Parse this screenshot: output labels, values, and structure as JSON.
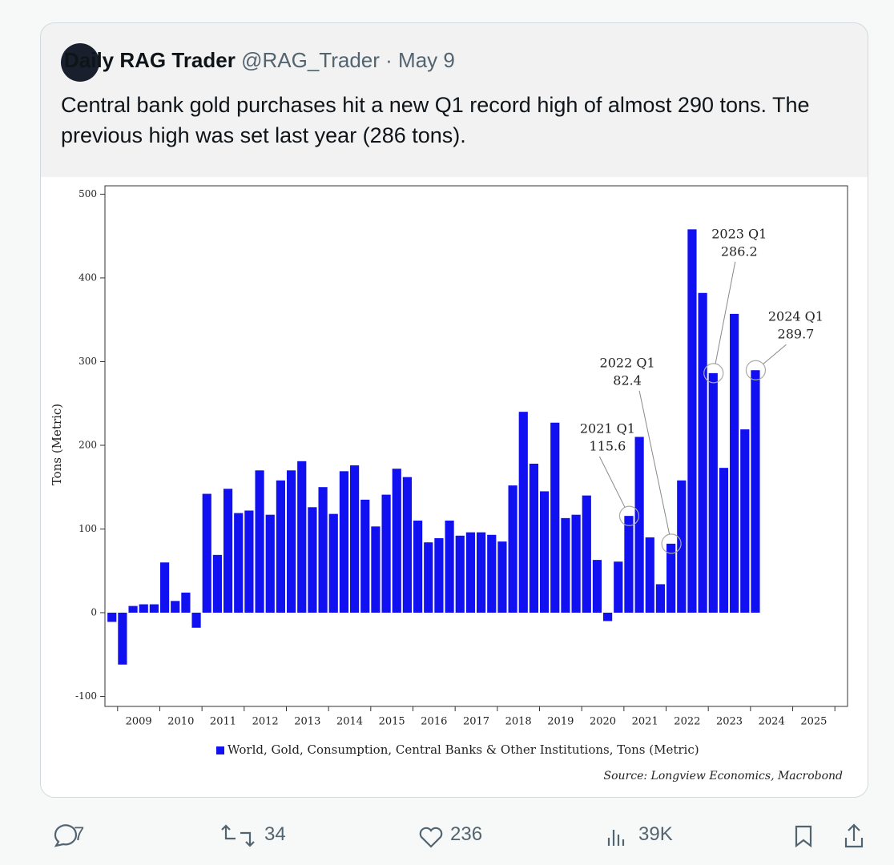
{
  "tweet": {
    "name": "Daily RAG Trader",
    "handle": "@RAG_Trader",
    "separator": "·",
    "date": "May 9",
    "text": "Central bank gold purchases hit a new Q1 record high of almost 290 tons. The previous high was set last year (286 tons).",
    "replies": 7,
    "reposts": 34,
    "likes": 236,
    "views": "39K"
  },
  "chart_data": {
    "type": "bar",
    "y_label": "Tons (Metric)",
    "source": "Source: Longview Economics, Macrobond",
    "x": [
      2008.75,
      2009,
      2009.25,
      2009.5,
      2009.75,
      2010,
      2010.25,
      2010.5,
      2010.75,
      2011,
      2011.25,
      2011.5,
      2011.75,
      2012,
      2012.25,
      2012.5,
      2012.75,
      2013,
      2013.25,
      2013.5,
      2013.75,
      2014,
      2014.25,
      2014.5,
      2014.75,
      2015,
      2015.25,
      2015.5,
      2015.75,
      2016,
      2016.25,
      2016.5,
      2016.75,
      2017,
      2017.25,
      2017.5,
      2017.75,
      2018,
      2018.25,
      2018.5,
      2018.75,
      2019,
      2019.25,
      2019.5,
      2019.75,
      2020,
      2020.25,
      2020.5,
      2020.75,
      2021,
      2021.25,
      2021.5,
      2021.75,
      2022,
      2022.25,
      2022.5,
      2022.75,
      2023,
      2023.25,
      2023.5,
      2023.75,
      2024
    ],
    "series": [
      {
        "name": "World, Gold, Consumption, Central Banks & Other Institutions, Tons (Metric)",
        "color": "#1010f0",
        "values": [
          -11,
          -62,
          8,
          10,
          10,
          60,
          14,
          24,
          -18,
          142,
          69,
          148,
          119,
          122,
          170,
          117,
          158,
          170,
          181,
          126,
          150,
          118,
          169,
          176,
          135,
          103,
          141,
          172,
          162,
          110,
          84,
          89,
          110,
          92,
          96,
          96,
          93,
          85,
          152,
          240,
          178,
          145,
          227,
          113,
          117,
          140,
          63,
          -10,
          61,
          115.6,
          210,
          90,
          34,
          82.4,
          158,
          458,
          382,
          286.2,
          173,
          357,
          219,
          289.7
        ]
      }
    ],
    "xlim": [
      2008.7,
      2026.3
    ],
    "xticks": [
      2009,
      2010,
      2011,
      2012,
      2013,
      2014,
      2015,
      2016,
      2017,
      2018,
      2019,
      2020,
      2021,
      2022,
      2023,
      2024,
      2025,
      2026
    ],
    "year_labels": [
      "2009",
      "2010",
      "2011",
      "2012",
      "2013",
      "2014",
      "2015",
      "2016",
      "2017",
      "2018",
      "2019",
      "2020",
      "2021",
      "2022",
      "2023",
      "2024",
      "2025"
    ],
    "ylim": [
      -112,
      510
    ],
    "yticks": [
      -100,
      0,
      100,
      200,
      300,
      400,
      500
    ],
    "annotations": [
      {
        "label": "2021 Q1",
        "x": 2021,
        "value": 115.6
      },
      {
        "label": "2022 Q1",
        "x": 2022,
        "value": 82.4
      },
      {
        "label": "2023 Q1",
        "x": 2023,
        "value": 286.2
      },
      {
        "label": "2024 Q1",
        "x": 2024,
        "value": 289.7
      }
    ]
  }
}
